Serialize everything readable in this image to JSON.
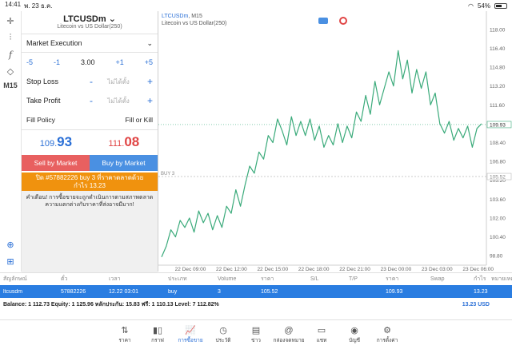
{
  "status": {
    "time": "14:41",
    "date": "พ. 23 ธ.ค.",
    "battery": "54%"
  },
  "rail": {
    "timeframe": "M15"
  },
  "order": {
    "symbol": "LTCUSDm",
    "symbol_desc": "Litecoin vs US Dollar(250)",
    "execution": "Market Execution",
    "vol_m5": "-5",
    "vol_m1": "-1",
    "volume": "3.00",
    "vol_p1": "+1",
    "vol_p5": "+5",
    "stop_loss_label": "Stop Loss",
    "take_profit_label": "Take Profit",
    "minus": "-",
    "plus": "+",
    "unset_placeholder": "ไม่ได้ตั้ง",
    "fill_policy_label": "Fill Policy",
    "fill_policy_value": "Fill or Kill",
    "bid_small": "109.",
    "bid_big": "93",
    "ask_small": "111.",
    "ask_big": "08",
    "sell_label": "Sell by Market",
    "buy_label": "Buy by Market",
    "close_line1": "ปิด #57882226 buy 3 ที่ราคาตลาดด้วย",
    "close_line2": "กำไร 13.23",
    "warning": "คำเตือน! การซื้อขายจะถูกดำเนินการตามสภาพตลาด ความแตกต่างกับราคาที่ส่งอาจมีมาก!"
  },
  "chart": {
    "symbol": "LTCUSDm",
    "timeframe": "M15",
    "description": "Litecoin vs US Dollar(250)",
    "buy_line_label": "BUY 3",
    "buy_price_tag": "105.52",
    "current_price_tag": "109.93",
    "line_color": "#3aaa7a",
    "accent_color": "#2a6fd6"
  },
  "chart_data": {
    "type": "line",
    "title": "",
    "xlabel": "",
    "ylabel": "",
    "x_ticks": [
      "22 Dec 09:00",
      "22 Dec 12:00",
      "22 Dec 15:00",
      "22 Dec 18:00",
      "22 Dec 21:00",
      "23 Dec 00:00",
      "23 Dec 03:00",
      "23 Dec 06:00"
    ],
    "y_ticks": [
      "98.80",
      "100.40",
      "102.00",
      "103.60",
      "105.20",
      "106.80",
      "108.40",
      "110.00",
      "111.60",
      "113.20",
      "114.80",
      "116.40",
      "118.00"
    ],
    "ylim": [
      98.0,
      118.6
    ],
    "grid": false,
    "series": [
      {
        "values": [
          98.7,
          99.6,
          101.0,
          100.4,
          101.8,
          101.2,
          102.0,
          100.8,
          102.6,
          101.6,
          102.4,
          101.0,
          102.2,
          101.2,
          103.0,
          102.4,
          104.4,
          103.0,
          104.8,
          106.4,
          105.8,
          107.6,
          107.0,
          109.0,
          108.4,
          110.4,
          109.4,
          108.2,
          110.6,
          109.0,
          110.2,
          109.0,
          110.4,
          108.6,
          109.8,
          108.0,
          109.0,
          108.2,
          110.0,
          108.4,
          109.8,
          108.8,
          111.0,
          110.2,
          112.4,
          110.8,
          113.6,
          111.6,
          113.0,
          114.4,
          113.2,
          116.2,
          113.8,
          115.4,
          112.6,
          114.6,
          113.0,
          114.4,
          111.6,
          112.6,
          110.0,
          109.2,
          110.2,
          108.6,
          109.6,
          108.8,
          109.8,
          108.0,
          109.6,
          110.0
        ]
      }
    ]
  },
  "table": {
    "headers": [
      "สัญลักษณ์",
      "ตั๋ว",
      "เวลา",
      "ประเภท",
      "Volume",
      "ราคา",
      "S/L",
      "T/P",
      "ราคา",
      "Swap",
      "กำไร",
      "หมายเหตุ"
    ],
    "row": [
      "ltcusdm",
      "57882226",
      "12.22 03:01",
      "buy",
      "3",
      "105.52",
      "",
      "",
      "109.93",
      "",
      "13.23",
      ""
    ],
    "balance": "Balance: 1 112.73 Equity: 1 125.96 หลักประกัน: 15.83 ฟรี: 1 110.13 Level: 7 112.82%",
    "total": "13.23  USD"
  },
  "tabs": [
    {
      "label": "ราคา",
      "icon": "arrows-updown-icon"
    },
    {
      "label": "กราฟ",
      "icon": "chart-bars-icon"
    },
    {
      "label": "การซื้อขาย",
      "icon": "trade-chart-icon"
    },
    {
      "label": "ประวัติ",
      "icon": "history-clock-icon"
    },
    {
      "label": "ข่าว",
      "icon": "news-icon"
    },
    {
      "label": "กล่องจดหมาย",
      "icon": "at-sign-icon"
    },
    {
      "label": "แชท",
      "icon": "chat-icon"
    },
    {
      "label": "บัญชี",
      "icon": "account-icon"
    },
    {
      "label": "การตั้งค่า",
      "icon": "gear-icon"
    }
  ]
}
